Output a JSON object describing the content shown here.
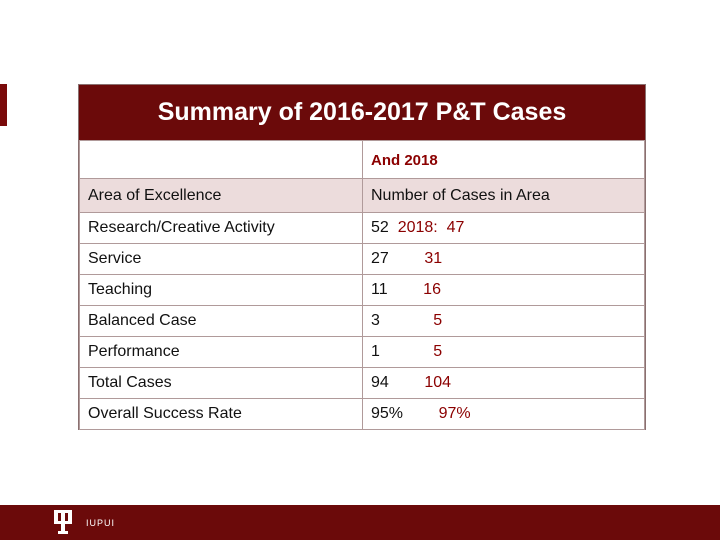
{
  "title": "Summary of 2016-2017 P&T Cases",
  "subheader": "And 2018",
  "columns": [
    "Area of Excellence",
    "Number of Cases in Area"
  ],
  "rows": [
    {
      "area": "Research/Creative Activity",
      "prev": "52",
      "new": "2018:  47"
    },
    {
      "area": "Service",
      "prev": "27",
      "new": "31"
    },
    {
      "area": "Teaching",
      "prev": "11",
      "new": "16"
    },
    {
      "area": "Balanced Case",
      "prev": "3",
      "new": "5"
    },
    {
      "area": "Performance",
      "prev": "1",
      "new": "5"
    },
    {
      "area": "Total Cases",
      "prev": "94",
      "new": "104"
    },
    {
      "area": "Overall Success Rate",
      "prev": "95%",
      "new": "97%"
    }
  ],
  "footer": {
    "logo_text": "IUPUI"
  },
  "colors": {
    "brand": "#6b0a0a",
    "header_row": "#ecdcdc"
  }
}
